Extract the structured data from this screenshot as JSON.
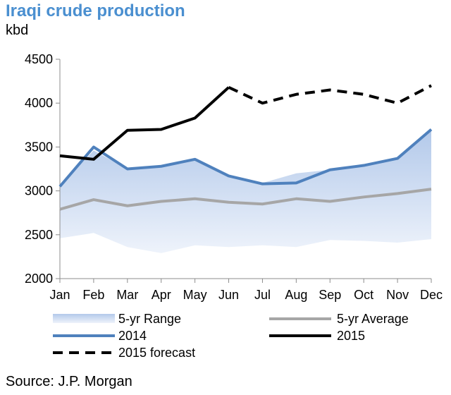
{
  "chart_data": {
    "type": "line",
    "title": "Iraqi crude production",
    "ylabel": "kbd",
    "source": "Source: J.P. Morgan",
    "categories": [
      "Jan",
      "Feb",
      "Mar",
      "Apr",
      "May",
      "Jun",
      "Jul",
      "Aug",
      "Sep",
      "Oct",
      "Nov",
      "Dec"
    ],
    "ylim": [
      2000,
      4500
    ],
    "yticks": [
      2000,
      2500,
      3000,
      3500,
      4000,
      4500
    ],
    "grid": false,
    "legend_position": "bottom",
    "range": {
      "name": "5-yr Range",
      "low": [
        2460,
        2520,
        2360,
        2290,
        2380,
        2360,
        2380,
        2360,
        2440,
        2430,
        2410,
        2450
      ],
      "high": [
        3060,
        3460,
        3250,
        3280,
        3360,
        3170,
        3090,
        3200,
        3240,
        3290,
        3370,
        3690
      ],
      "color": "#c5d6ef"
    },
    "series": [
      {
        "name": "5-yr Average",
        "color": "#a6a6a6",
        "style": "solid",
        "values": [
          2790,
          2900,
          2830,
          2880,
          2910,
          2870,
          2850,
          2910,
          2880,
          2930,
          2970,
          3020
        ]
      },
      {
        "name": "2014",
        "color": "#4f81bd",
        "style": "solid",
        "values": [
          3050,
          3500,
          3250,
          3280,
          3360,
          3170,
          3080,
          3090,
          3240,
          3290,
          3370,
          3700
        ]
      },
      {
        "name": "2015",
        "color": "#000000",
        "style": "solid",
        "values": [
          3400,
          3360,
          3690,
          3700,
          3830,
          4180,
          null,
          null,
          null,
          null,
          null,
          null
        ]
      },
      {
        "name": "2015 forecast",
        "color": "#000000",
        "style": "dashed",
        "values": [
          null,
          null,
          null,
          null,
          null,
          4180,
          4000,
          4100,
          4150,
          4100,
          4000,
          4200
        ]
      }
    ]
  }
}
